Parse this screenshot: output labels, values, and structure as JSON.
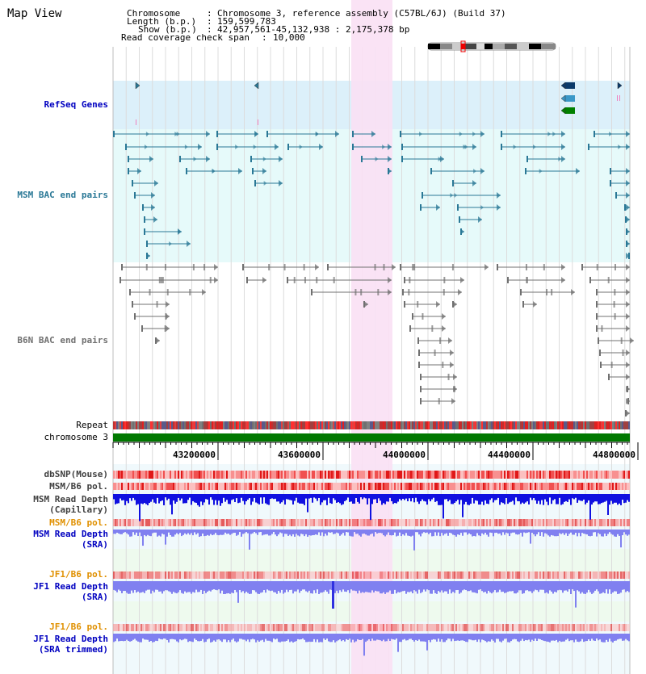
{
  "title": "Map View",
  "header": {
    "chromosome_key": "Chromosome",
    "chromosome_value": "Chromosome 3, reference assembly (C57BL/6J) (Build 37)",
    "length_key": "Length (b.p.)",
    "length_value": "159,599,783",
    "show_key": "Show (b.p.)",
    "show_value": "42,957,561-45,132,938 : 2,175,378 bp",
    "coverage_key": "Read coverage check span",
    "coverage_value": "10,000"
  },
  "tracks": {
    "refseq": "RefSeq Genes",
    "msm_bac": "MSM BAC end pairs",
    "b6n_bac": "B6N BAC end pairs",
    "repeat": "Repeat",
    "chromosome": "chromosome 3",
    "dbsnp": "dbSNP(Mouse)",
    "msm_b6_pol_1": "MSM/B6 pol.",
    "msm_depth_cap_1": "MSM Read Depth",
    "msm_depth_cap_2": "(Capillary)",
    "msm_b6_pol_2": "MSM/B6 pol.",
    "msm_depth_sra_1": "MSM Read Depth",
    "msm_depth_sra_2": "(SRA)",
    "jf1_b6_pol_1": "JF1/B6 pol.",
    "jf1_depth_sra_1": "JF1 Read Depth",
    "jf1_depth_sra_2": "(SRA)",
    "jf1_b6_pol_2": "JF1/B6 pol.",
    "jf1_depth_trim_1": "JF1 Read Depth",
    "jf1_depth_trim_2": "(SRA trimmed)"
  },
  "axis": {
    "ticks": [
      "43200000",
      "43600000",
      "44000000",
      "44400000",
      "44800000"
    ]
  },
  "highlight_range_bp": [
    43900000,
    44000000
  ],
  "colors": {
    "refseq_bg": "#dcf0fa",
    "msm_bac_bg": "#e6fafa",
    "highlight": "#fae0f4",
    "msm_feature": "#2a7896",
    "b6n_feature": "#707070",
    "chromosome_bar": "#007800",
    "depth_dark": "#1010e0",
    "depth_light": "#8080f0",
    "pol_light": "#f8c0c0",
    "pol_dark": "#e02020",
    "label_blue": "#0000c0",
    "label_orange": "#e09000"
  }
}
